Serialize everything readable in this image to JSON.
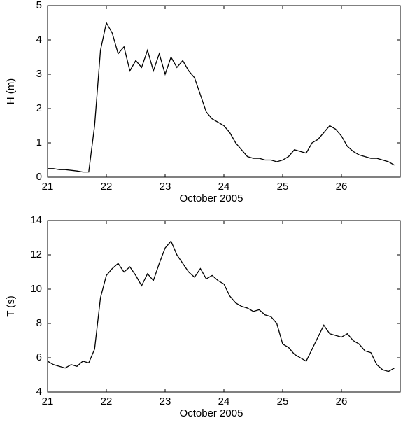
{
  "chart_data": [
    {
      "type": "line",
      "xlabel": "October 2005",
      "ylabel": "H (m)",
      "xlim": [
        21,
        27
      ],
      "xticks": [
        21,
        22,
        23,
        24,
        25,
        26
      ],
      "ylim": [
        0,
        5
      ],
      "yticks": [
        0,
        1,
        2,
        3,
        4,
        5
      ],
      "x": [
        21.0,
        21.1,
        21.2,
        21.3,
        21.4,
        21.5,
        21.6,
        21.7,
        21.8,
        21.9,
        22.0,
        22.1,
        22.2,
        22.3,
        22.4,
        22.5,
        22.6,
        22.7,
        22.8,
        22.9,
        23.0,
        23.1,
        23.2,
        23.3,
        23.4,
        23.5,
        23.6,
        23.7,
        23.8,
        23.9,
        24.0,
        24.1,
        24.2,
        24.3,
        24.4,
        24.5,
        24.6,
        24.7,
        24.8,
        24.9,
        25.0,
        25.1,
        25.2,
        25.3,
        25.4,
        25.5,
        25.6,
        25.7,
        25.8,
        25.9,
        26.0,
        26.1,
        26.2,
        26.3,
        26.4,
        26.5,
        26.6,
        26.7,
        26.8,
        26.9
      ],
      "series": [
        {
          "color": "#000000",
          "values": [
            0.25,
            0.25,
            0.22,
            0.22,
            0.2,
            0.18,
            0.15,
            0.15,
            1.5,
            3.7,
            4.5,
            4.2,
            3.6,
            3.8,
            3.1,
            3.4,
            3.2,
            3.7,
            3.1,
            3.6,
            3.0,
            3.5,
            3.2,
            3.4,
            3.1,
            2.9,
            2.4,
            1.9,
            1.7,
            1.6,
            1.5,
            1.3,
            1.0,
            0.8,
            0.6,
            0.55,
            0.55,
            0.5,
            0.5,
            0.45,
            0.5,
            0.6,
            0.8,
            0.75,
            0.7,
            1.0,
            1.1,
            1.3,
            1.5,
            1.4,
            1.2,
            0.9,
            0.75,
            0.65,
            0.6,
            0.55,
            0.55,
            0.5,
            0.45,
            0.35
          ]
        }
      ]
    },
    {
      "type": "line",
      "xlabel": "October 2005",
      "ylabel": "T (s)",
      "xlim": [
        21,
        27
      ],
      "xticks": [
        21,
        22,
        23,
        24,
        25,
        26
      ],
      "ylim": [
        4,
        14
      ],
      "yticks": [
        4,
        6,
        8,
        10,
        12,
        14
      ],
      "x": [
        21.0,
        21.1,
        21.2,
        21.3,
        21.4,
        21.5,
        21.6,
        21.7,
        21.8,
        21.9,
        22.0,
        22.1,
        22.2,
        22.3,
        22.4,
        22.5,
        22.6,
        22.7,
        22.8,
        22.9,
        23.0,
        23.1,
        23.2,
        23.3,
        23.4,
        23.5,
        23.6,
        23.7,
        23.8,
        23.9,
        24.0,
        24.1,
        24.2,
        24.3,
        24.4,
        24.5,
        24.6,
        24.7,
        24.8,
        24.9,
        25.0,
        25.1,
        25.2,
        25.3,
        25.4,
        25.5,
        25.6,
        25.7,
        25.8,
        25.9,
        26.0,
        26.1,
        26.2,
        26.3,
        26.4,
        26.5,
        26.6,
        26.7,
        26.8,
        26.9
      ],
      "series": [
        {
          "color": "#000000",
          "values": [
            5.8,
            5.6,
            5.5,
            5.4,
            5.6,
            5.5,
            5.8,
            5.7,
            6.5,
            9.5,
            10.8,
            11.2,
            11.5,
            11.0,
            11.3,
            10.8,
            10.2,
            10.9,
            10.5,
            11.5,
            12.4,
            12.8,
            12.0,
            11.5,
            11.0,
            10.7,
            11.2,
            10.6,
            10.8,
            10.5,
            10.3,
            9.6,
            9.2,
            9.0,
            8.9,
            8.7,
            8.8,
            8.5,
            8.4,
            8.0,
            6.8,
            6.6,
            6.2,
            6.0,
            5.8,
            6.5,
            7.2,
            7.9,
            7.4,
            7.3,
            7.2,
            7.4,
            7.0,
            6.8,
            6.4,
            6.3,
            5.6,
            5.3,
            5.2,
            5.4
          ]
        }
      ]
    }
  ]
}
